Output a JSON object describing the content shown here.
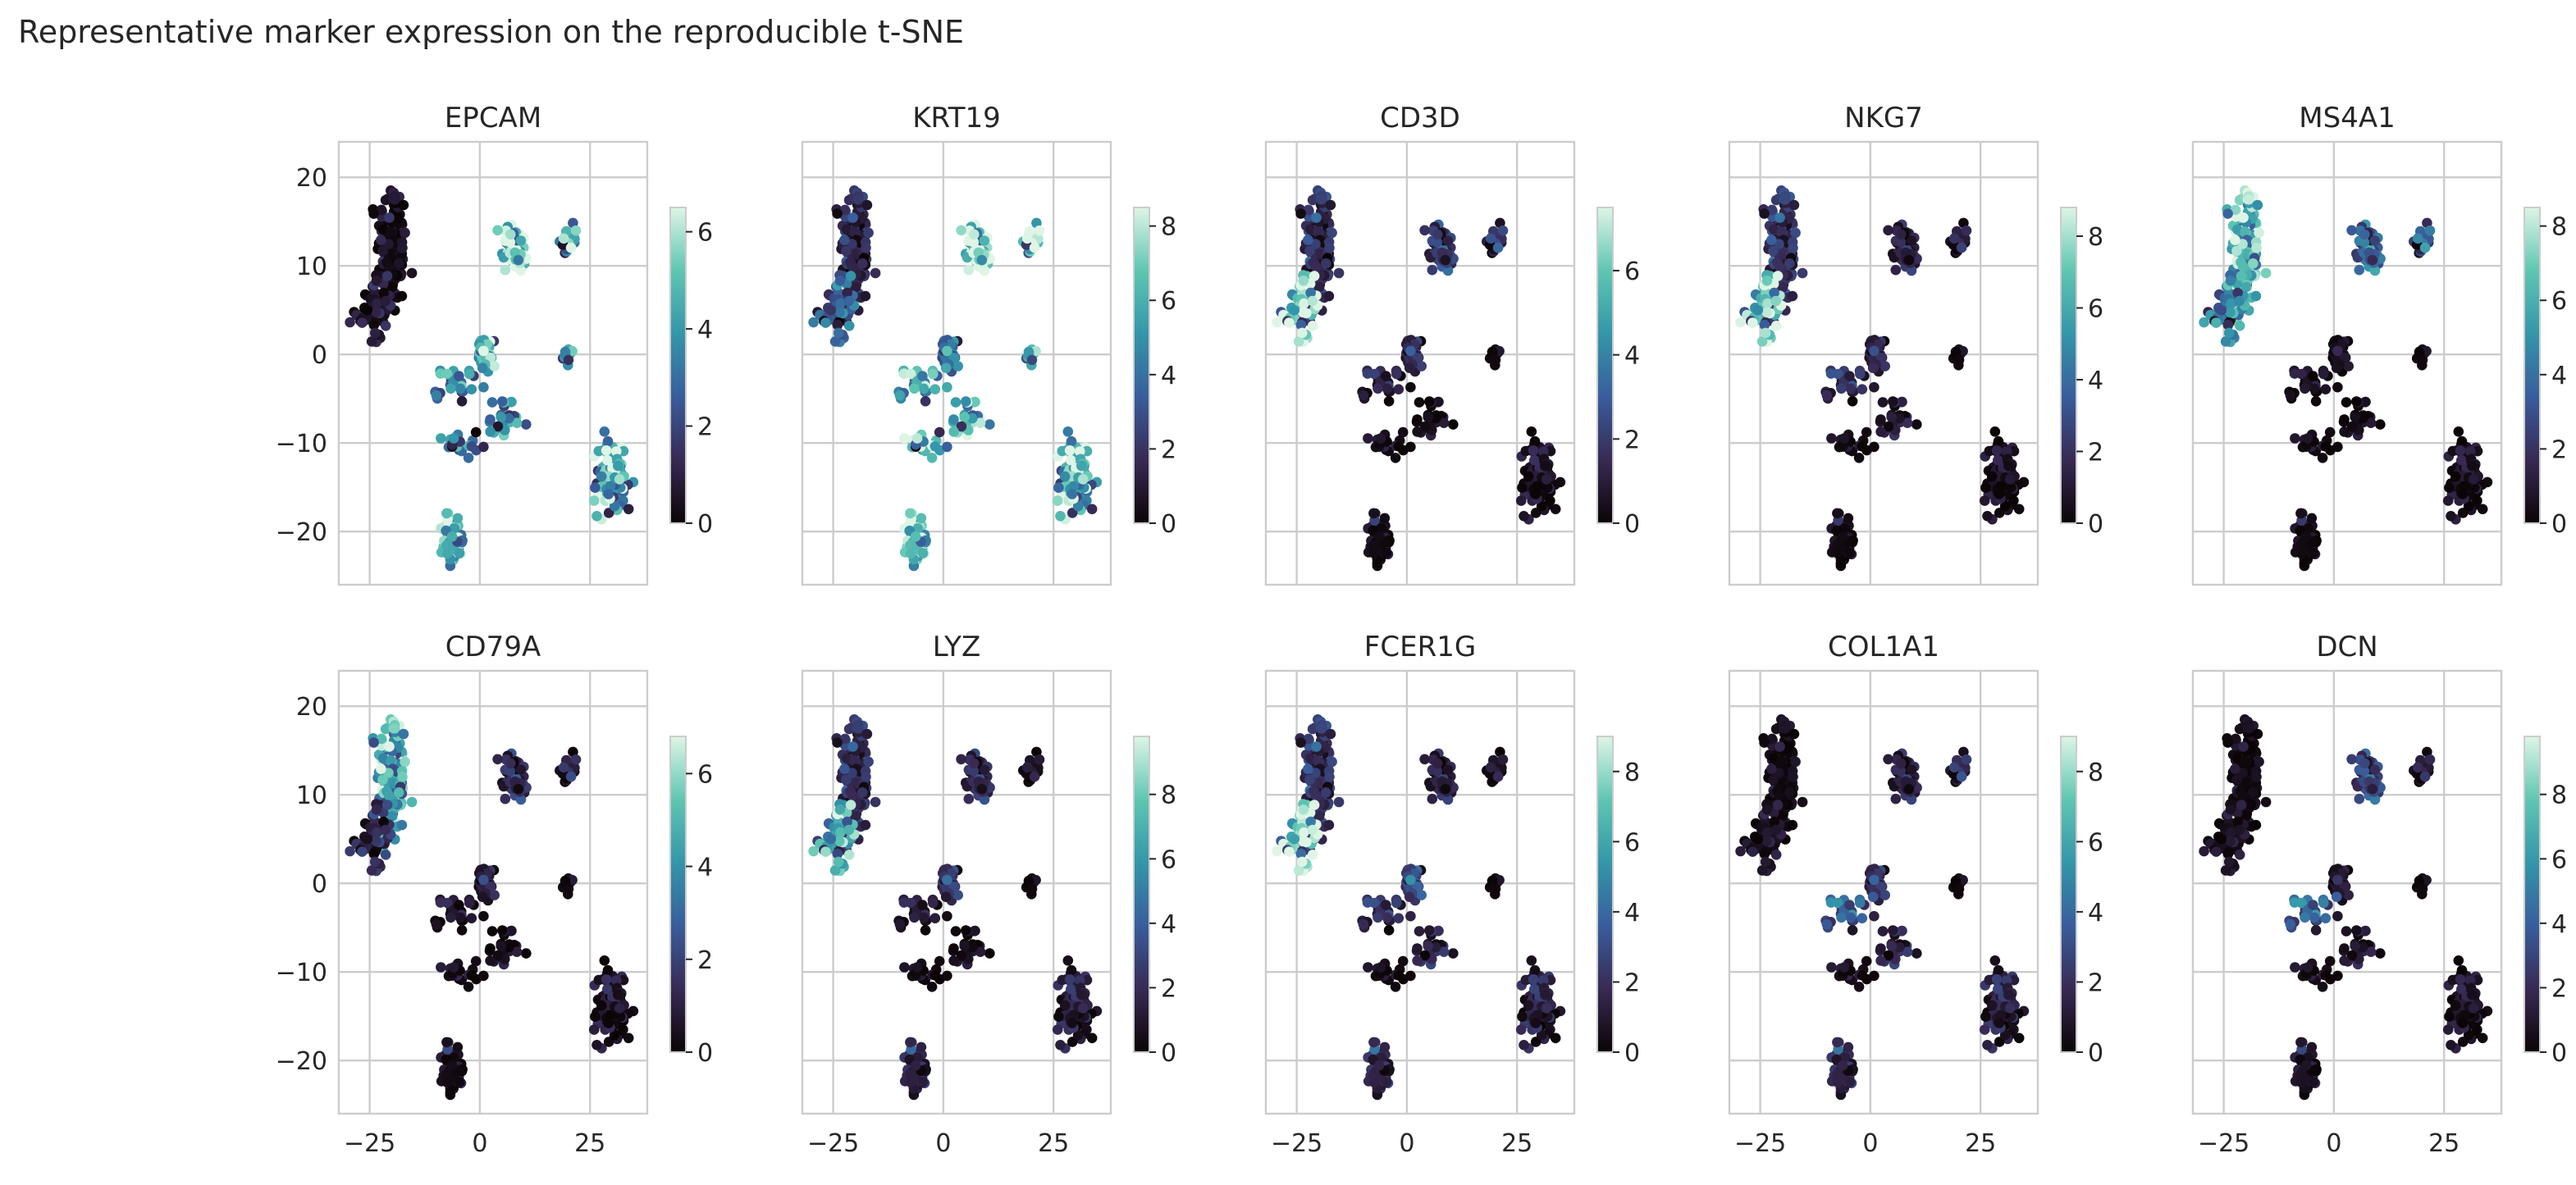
{
  "chart_data": {
    "type": "scatter",
    "title": "Representative marker expression on the reproducible t-SNE",
    "xlim": [
      -32,
      38
    ],
    "ylim": [
      -26,
      24
    ],
    "x_ticks": [
      -25,
      0,
      25
    ],
    "y_ticks": [
      -20,
      -10,
      0,
      10,
      20
    ],
    "grid": true,
    "colormap": "mako",
    "colormap_stops": [
      "#0b0405",
      "#382a54",
      "#395d9c",
      "#3496a9",
      "#5fc6b2",
      "#def5e5"
    ],
    "clusters": [
      {
        "name": "A",
        "center": [
          -20,
          12
        ],
        "spread": [
          3,
          7
        ],
        "count": 150
      },
      {
        "name": "B",
        "center": [
          -24,
          5
        ],
        "spread": [
          4,
          3
        ],
        "count": 60
      },
      {
        "name": "C",
        "center": [
          8,
          12
        ],
        "spread": [
          2.5,
          2.5
        ],
        "count": 60
      },
      {
        "name": "D",
        "center": [
          20,
          13
        ],
        "spread": [
          1.5,
          1.2
        ],
        "count": 25
      },
      {
        "name": "E",
        "center": [
          1,
          0
        ],
        "spread": [
          2,
          1.5
        ],
        "count": 45
      },
      {
        "name": "F",
        "center": [
          20,
          0
        ],
        "spread": [
          1,
          0.8
        ],
        "count": 15
      },
      {
        "name": "G",
        "center": [
          -6,
          -3
        ],
        "spread": [
          4,
          2
        ],
        "count": 25
      },
      {
        "name": "H",
        "center": [
          5,
          -7
        ],
        "spread": [
          5,
          2
        ],
        "count": 25
      },
      {
        "name": "I",
        "center": [
          -4,
          -10
        ],
        "spread": [
          4,
          1.5
        ],
        "count": 20
      },
      {
        "name": "J",
        "center": [
          30,
          -14
        ],
        "spread": [
          3,
          4
        ],
        "count": 110
      },
      {
        "name": "K",
        "center": [
          -6,
          -21
        ],
        "spread": [
          2,
          2.5
        ],
        "count": 70
      }
    ],
    "panels": [
      {
        "gene": "EPCAM",
        "cbar_max": 6.5,
        "cbar_ticks": [
          0,
          2,
          4,
          6
        ],
        "levels": {
          "A": 0.3,
          "B": 0.5,
          "C": 5.0,
          "D": 4.0,
          "E": 5.0,
          "F": 4.0,
          "G": 3.0,
          "H": 3.5,
          "I": 3.0,
          "J": 4.0,
          "K": 4.5
        }
      },
      {
        "gene": "KRT19",
        "cbar_max": 8.5,
        "cbar_ticks": [
          0,
          2,
          4,
          6,
          8
        ],
        "levels": {
          "A": 1.5,
          "B": 3.0,
          "C": 7.0,
          "D": 7.5,
          "E": 4.0,
          "F": 6.0,
          "G": 5.0,
          "H": 6.0,
          "I": 6.5,
          "J": 5.5,
          "K": 6.5
        }
      },
      {
        "gene": "CD3D",
        "cbar_max": 7.5,
        "cbar_ticks": [
          0,
          2,
          4,
          6
        ],
        "levels": {
          "A": 1.5,
          "B": 6.0,
          "C": 1.5,
          "D": 1.5,
          "E": 1.5,
          "F": 0.3,
          "G": 0.8,
          "H": 0.3,
          "I": 0.3,
          "J": 0.3,
          "K": 0.3
        }
      },
      {
        "gene": "NKG7",
        "cbar_max": 8.8,
        "cbar_ticks": [
          0,
          2,
          4,
          6,
          8
        ],
        "levels": {
          "A": 2.0,
          "B": 6.5,
          "C": 1.0,
          "D": 1.0,
          "E": 1.5,
          "F": 0.3,
          "G": 1.5,
          "H": 1.0,
          "I": 0.3,
          "J": 0.3,
          "K": 0.3
        }
      },
      {
        "gene": "MS4A1",
        "cbar_max": 8.5,
        "cbar_ticks": [
          0,
          2,
          4,
          6,
          8
        ],
        "levels": {
          "A": 6.5,
          "B": 4.0,
          "C": 3.0,
          "D": 3.0,
          "E": 0.5,
          "F": 0.3,
          "G": 0.3,
          "H": 0.3,
          "I": 0.3,
          "J": 0.3,
          "K": 0.3
        }
      },
      {
        "gene": "CD79A",
        "cbar_max": 6.8,
        "cbar_ticks": [
          0,
          2,
          4,
          6
        ],
        "levels": {
          "A": 4.5,
          "B": 1.0,
          "C": 1.0,
          "D": 0.8,
          "E": 1.0,
          "F": 0.3,
          "G": 0.3,
          "H": 0.3,
          "I": 0.3,
          "J": 0.3,
          "K": 0.3
        }
      },
      {
        "gene": "LYZ",
        "cbar_max": 9.8,
        "cbar_ticks": [
          0,
          2,
          4,
          6,
          8
        ],
        "levels": {
          "A": 2.0,
          "B": 6.0,
          "C": 1.5,
          "D": 0.5,
          "E": 2.5,
          "F": 0.3,
          "G": 0.8,
          "H": 0.5,
          "I": 0.3,
          "J": 1.0,
          "K": 1.5
        }
      },
      {
        "gene": "FCER1G",
        "cbar_max": 9.0,
        "cbar_ticks": [
          0,
          2,
          4,
          6,
          8
        ],
        "levels": {
          "A": 2.0,
          "B": 7.5,
          "C": 1.0,
          "D": 0.5,
          "E": 3.0,
          "F": 0.3,
          "G": 1.5,
          "H": 1.5,
          "I": 0.3,
          "J": 1.0,
          "K": 1.5
        }
      },
      {
        "gene": "COL1A1",
        "cbar_max": 9.0,
        "cbar_ticks": [
          0,
          2,
          4,
          6,
          8
        ],
        "levels": {
          "A": 0.3,
          "B": 0.5,
          "C": 1.0,
          "D": 1.5,
          "E": 2.0,
          "F": 0.3,
          "G": 3.0,
          "H": 1.5,
          "I": 0.5,
          "J": 1.0,
          "K": 1.5
        }
      },
      {
        "gene": "DCN",
        "cbar_max": 9.8,
        "cbar_ticks": [
          0,
          2,
          4,
          6,
          8
        ],
        "levels": {
          "A": 0.3,
          "B": 0.5,
          "C": 2.5,
          "D": 1.0,
          "E": 1.0,
          "F": 0.3,
          "G": 3.5,
          "H": 1.0,
          "I": 0.5,
          "J": 0.5,
          "K": 0.8
        }
      }
    ]
  }
}
